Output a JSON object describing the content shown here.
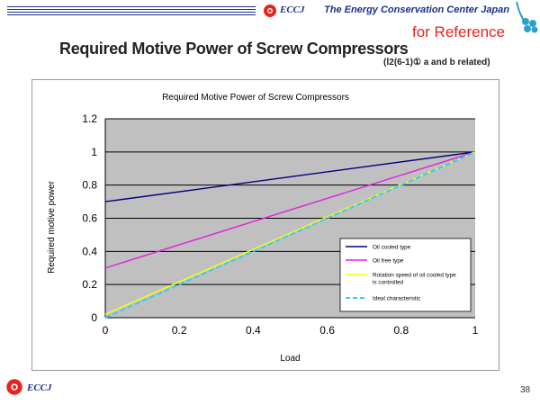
{
  "header": {
    "org_name": "The Energy Conservation Center Japan",
    "logo_text": "ECCJ",
    "for_reference": "for Reference",
    "title": "Required Motive Power of Screw Compressors",
    "subtitle": "(Ⅰ2(6-1)① a and b related)",
    "page_number": "38"
  },
  "colors": {
    "brand_blue": "#1b2f8c",
    "accent_red": "#e8231e",
    "plot_bg": "#c0c0c0"
  },
  "chart_data": {
    "type": "line",
    "title": "Required Motive Power of Screw Compressors",
    "xlabel": "Load",
    "ylabel": "Required motive power",
    "xlim": [
      0,
      1
    ],
    "ylim": [
      0,
      1.2
    ],
    "x_ticks": [
      "0",
      "0.2",
      "0.4",
      "0.6",
      "0.8",
      "1"
    ],
    "y_ticks": [
      "0",
      "0.2",
      "0.4",
      "0.6",
      "0.8",
      "1",
      "1.2"
    ],
    "grid": "horizontal",
    "legend_position": "lower-right",
    "series": [
      {
        "name": "Oil cooled type",
        "color": "#000080",
        "dash": "solid",
        "x": [
          0,
          1
        ],
        "y": [
          0.7,
          1.0
        ]
      },
      {
        "name": "Oil free type",
        "color": "#e020e0",
        "dash": "solid",
        "x": [
          0,
          1
        ],
        "y": [
          0.3,
          1.0
        ]
      },
      {
        "name": "Rotation speed of oil cooled type is controlled",
        "color": "#ffff00",
        "dash": "solid",
        "x": [
          0,
          1
        ],
        "y": [
          0.02,
          1.0
        ]
      },
      {
        "name": "Ideal characteristic",
        "color": "#33ccff",
        "dash": "dashed",
        "x": [
          0,
          1
        ],
        "y": [
          0,
          1.0
        ]
      }
    ]
  }
}
